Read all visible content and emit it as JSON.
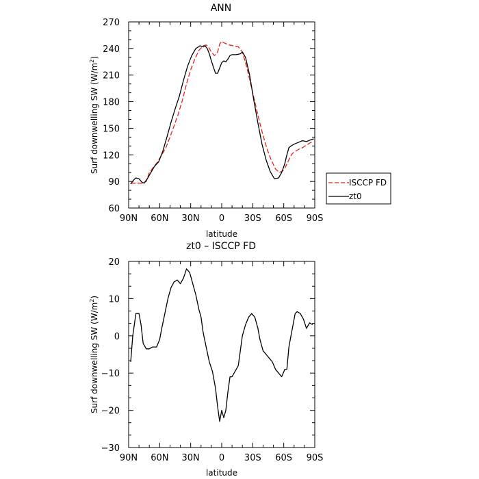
{
  "colors": {
    "zt0": "#000000",
    "isccp": "#e8201a",
    "axis": "#000000"
  },
  "legend": {
    "isccp_label": "ISCCP FD",
    "zt0_label": "zt0"
  },
  "chart_data": [
    {
      "type": "line",
      "title": "ANN",
      "xlabel": "latitude",
      "ylabel": "Surf downwelling SW (W/m",
      "ylabel_sup": "2",
      "ylabel_end": ")",
      "xlim": [
        90,
        -90
      ],
      "ylim": [
        60,
        270
      ],
      "x_ticks": [
        90,
        60,
        30,
        0,
        -30,
        -60,
        -90
      ],
      "x_tick_labels": [
        "90N",
        "60N",
        "30N",
        "0",
        "30S",
        "60S",
        "90S"
      ],
      "y_ticks": [
        60,
        90,
        120,
        150,
        180,
        210,
        240,
        270
      ],
      "y_tick_labels": [
        "60",
        "90",
        "120",
        "150",
        "180",
        "210",
        "240",
        "270"
      ],
      "legend_position": "right",
      "series": [
        {
          "name": "ISCCP FD",
          "style": "dashed",
          "color": "#e8201a",
          "x": [
            88,
            85,
            81,
            77,
            73,
            70,
            66,
            62,
            58,
            54,
            50,
            46,
            42,
            38,
            34,
            30,
            26,
            22,
            18,
            15,
            13,
            10,
            7,
            4,
            2,
            0,
            -3,
            -7,
            -12,
            -16,
            -20,
            -24,
            -28,
            -32,
            -36,
            -40,
            -44,
            -48,
            -52,
            -56,
            -60,
            -62,
            -64,
            -66,
            -68,
            -70,
            -74,
            -78,
            -82,
            -86,
            -89
          ],
          "y": [
            88,
            88,
            88,
            88,
            90,
            100,
            106,
            112,
            120,
            128,
            140,
            153,
            166,
            182,
            200,
            216,
            228,
            238,
            243,
            244,
            242,
            236,
            232,
            236,
            245,
            248,
            246,
            244,
            243,
            242,
            236,
            220,
            200,
            180,
            160,
            142,
            126,
            114,
            104,
            100,
            103,
            107,
            112,
            117,
            121,
            123,
            126,
            128,
            131,
            134,
            135
          ]
        },
        {
          "name": "zt0",
          "style": "solid",
          "color": "#000000",
          "x": [
            88,
            85,
            83,
            80,
            77,
            75,
            72,
            69,
            65,
            61,
            57,
            53,
            49,
            45,
            41,
            37,
            33,
            29,
            25,
            21,
            18,
            16,
            14,
            12,
            10,
            8,
            6,
            4,
            2,
            0,
            -2,
            -4,
            -6,
            -8,
            -10,
            -14,
            -18,
            -20,
            -23,
            -27,
            -31,
            -35,
            -39,
            -43,
            -47,
            -51,
            -55,
            -58,
            -61,
            -63,
            -65,
            -67,
            -70,
            -74,
            -78,
            -82,
            -86,
            -89
          ],
          "y": [
            87,
            92,
            94,
            93,
            89,
            88,
            93,
            99,
            107,
            112,
            124,
            140,
            157,
            172,
            186,
            204,
            220,
            232,
            240,
            243,
            242,
            243,
            240,
            234,
            226,
            219,
            212,
            212,
            218,
            224,
            226,
            225,
            228,
            232,
            233,
            233,
            234,
            236,
            230,
            210,
            182,
            156,
            132,
            114,
            101,
            93,
            94,
            100,
            110,
            120,
            128,
            130,
            132,
            134,
            136,
            135,
            137,
            138
          ]
        }
      ]
    },
    {
      "type": "line",
      "title": "zt0 – ISCCP FD",
      "xlabel": "latitude",
      "ylabel": "Surf downwelling SW (W/m",
      "ylabel_sup": "2",
      "ylabel_end": ")",
      "xlim": [
        90,
        -90
      ],
      "ylim": [
        -30,
        20
      ],
      "x_ticks": [
        90,
        60,
        30,
        0,
        -30,
        -60,
        -90
      ],
      "x_tick_labels": [
        "90N",
        "60N",
        "30N",
        "0",
        "30S",
        "60S",
        "90S"
      ],
      "y_ticks": [
        -30,
        -20,
        -10,
        0,
        10,
        20
      ],
      "y_tick_labels": [
        "−30",
        "−20",
        "−10",
        "0",
        "10",
        "20"
      ],
      "series": [
        {
          "style": "solid",
          "color": "#000000",
          "x": [
            88,
            86,
            83,
            80,
            78,
            76,
            73,
            70,
            67,
            63,
            60,
            58,
            55,
            52,
            49,
            46,
            43,
            40,
            37,
            34,
            31,
            28,
            25,
            22,
            20,
            18,
            15,
            12,
            9,
            6,
            4,
            2,
            0,
            -2,
            -4,
            -6,
            -8,
            -10,
            -12,
            -14,
            -16,
            -18,
            -20,
            -23,
            -26,
            -29,
            -32,
            -35,
            -37,
            -40,
            -43,
            -46,
            -49,
            -52,
            -55,
            -58,
            -61,
            -63,
            -65,
            -67,
            -69,
            -71,
            -73,
            -76,
            -79,
            -82,
            -85,
            -88
          ],
          "y": [
            -7,
            0,
            6,
            6,
            3,
            -2,
            -3.5,
            -3.5,
            -3,
            -3,
            -1,
            2,
            6,
            10,
            13,
            14.5,
            15,
            14,
            15.5,
            18,
            17,
            14,
            11,
            7,
            5,
            1,
            -3,
            -7,
            -9.5,
            -14,
            -19,
            -23,
            -20,
            -22,
            -20,
            -15,
            -11,
            -11,
            -10,
            -9,
            -8,
            -4,
            0,
            3,
            5,
            6,
            5,
            2,
            -1,
            -4,
            -5,
            -6,
            -7,
            -9,
            -10,
            -11,
            -9,
            -9,
            -3,
            0,
            3,
            6,
            6.5,
            6,
            4.5,
            2,
            3.5,
            3
          ]
        }
      ]
    }
  ]
}
